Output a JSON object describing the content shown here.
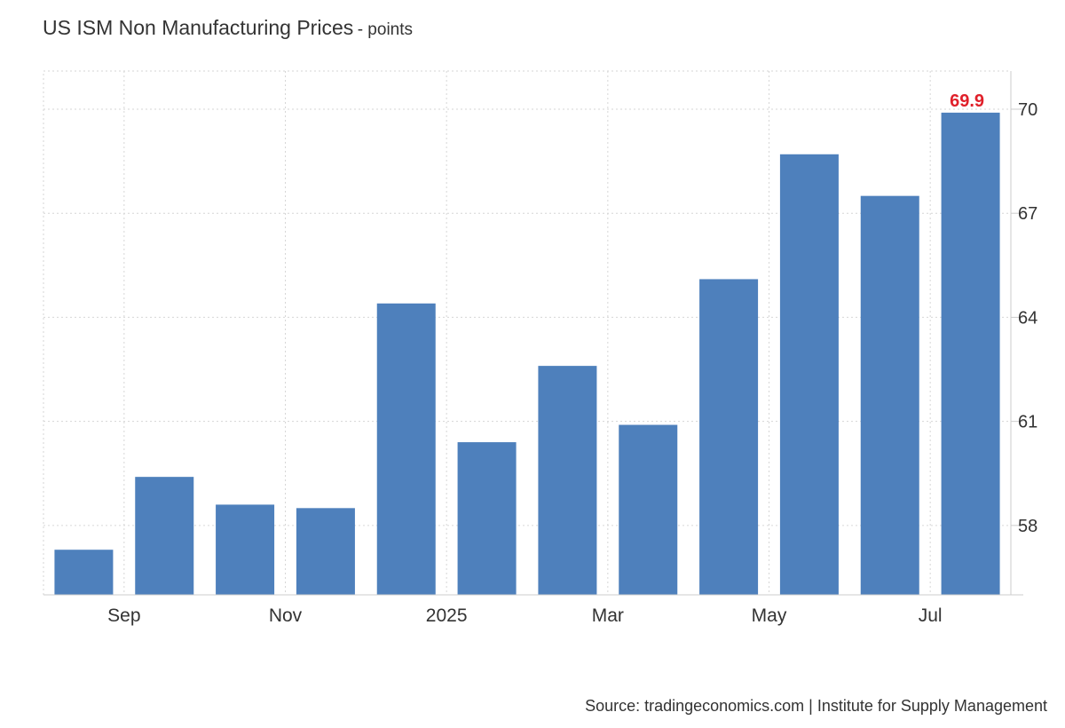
{
  "chart_data": {
    "type": "bar",
    "title": "US ISM Non Manufacturing Prices",
    "subtitle": "- points",
    "categories": [
      "Aug 2024",
      "Sep 2024",
      "Oct 2024",
      "Nov 2024",
      "Dec 2024",
      "Jan 2025",
      "Feb 2025",
      "Mar 2025",
      "Apr 2025",
      "May 2025",
      "Jun 2025",
      "Jul 2025"
    ],
    "values": [
      57.3,
      59.4,
      58.6,
      58.5,
      64.4,
      60.4,
      62.6,
      60.9,
      65.1,
      68.7,
      67.5,
      69.9
    ],
    "x_tick_labels": [
      {
        "category": "Sep 2024",
        "label": "Sep"
      },
      {
        "category": "Nov 2024",
        "label": "Nov"
      },
      {
        "category": "Jan 2025",
        "label": "2025"
      },
      {
        "category": "Mar 2025",
        "label": "Mar"
      },
      {
        "category": "May 2025",
        "label": "May"
      },
      {
        "category": "Jul 2025",
        "label": "Jul"
      }
    ],
    "y_ticks": [
      58,
      61,
      64,
      67,
      70
    ],
    "ylim": [
      56,
      71.1
    ],
    "y_axis_side": "right",
    "grid": true,
    "bar_color": "#4e80bc",
    "annotation": {
      "category": "Jul 2025",
      "text": "69.9",
      "color": "#e0202a"
    },
    "source": "Source: tradingeconomics.com | Institute for Supply Management"
  }
}
